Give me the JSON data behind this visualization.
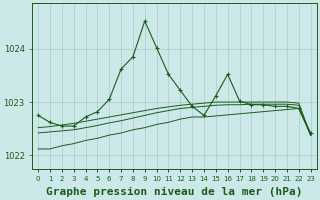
{
  "title": "Graphe pression niveau de la mer (hPa)",
  "x_labels": [
    "0",
    "1",
    "2",
    "3",
    "4",
    "5",
    "6",
    "7",
    "8",
    "9",
    "10",
    "11",
    "12",
    "13",
    "14",
    "15",
    "16",
    "17",
    "18",
    "19",
    "20",
    "21",
    "22",
    "23"
  ],
  "hours": [
    0,
    1,
    2,
    3,
    4,
    5,
    6,
    7,
    8,
    9,
    10,
    11,
    12,
    13,
    14,
    15,
    16,
    17,
    18,
    19,
    20,
    21,
    22,
    23
  ],
  "main_line": [
    1022.75,
    1022.62,
    1022.55,
    1022.55,
    1022.72,
    1022.82,
    1023.05,
    1023.62,
    1023.85,
    1024.52,
    1024.02,
    1023.52,
    1023.22,
    1022.92,
    1022.75,
    1023.12,
    1023.52,
    1023.02,
    1022.95,
    1022.95,
    1022.92,
    1022.92,
    1022.88,
    1022.42
  ],
  "ref_line1": [
    1022.12,
    1022.12,
    1022.18,
    1022.22,
    1022.28,
    1022.32,
    1022.38,
    1022.42,
    1022.48,
    1022.52,
    1022.58,
    1022.62,
    1022.68,
    1022.72,
    1022.72,
    1022.74,
    1022.76,
    1022.78,
    1022.8,
    1022.82,
    1022.84,
    1022.86,
    1022.88,
    1022.38
  ],
  "ref_line2": [
    1022.42,
    1022.44,
    1022.46,
    1022.48,
    1022.52,
    1022.56,
    1022.61,
    1022.65,
    1022.7,
    1022.75,
    1022.8,
    1022.84,
    1022.88,
    1022.9,
    1022.92,
    1022.94,
    1022.95,
    1022.95,
    1022.96,
    1022.96,
    1022.96,
    1022.96,
    1022.94,
    1022.38
  ],
  "ref_line3": [
    1022.52,
    1022.54,
    1022.57,
    1022.6,
    1022.64,
    1022.68,
    1022.72,
    1022.76,
    1022.8,
    1022.84,
    1022.88,
    1022.91,
    1022.94,
    1022.96,
    1022.98,
    1023.0,
    1023.0,
    1023.0,
    1023.0,
    1023.0,
    1023.0,
    1023.0,
    1022.98,
    1022.38
  ],
  "bg_color": "#cce8e8",
  "line_color": "#1a5c1a",
  "grid_color": "#aacccc",
  "ylim": [
    1021.75,
    1024.85
  ],
  "yticks": [
    1022,
    1023,
    1024
  ],
  "title_fontsize": 8,
  "marker": "+"
}
